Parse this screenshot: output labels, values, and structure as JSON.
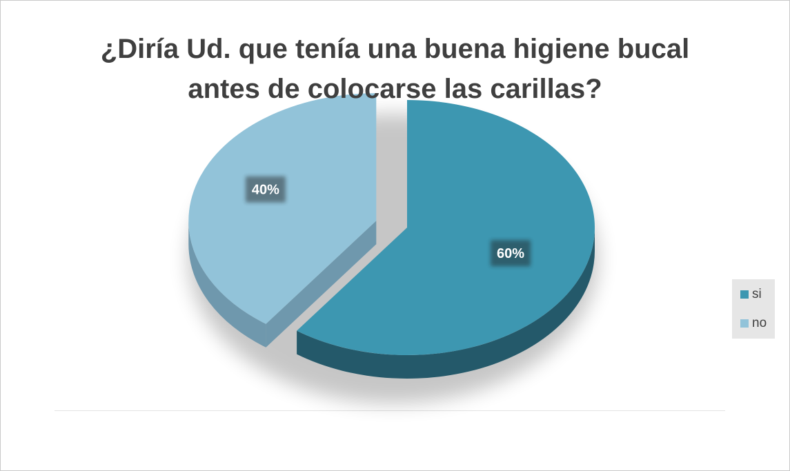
{
  "chart_data": {
    "type": "pie",
    "title_lines": [
      "¿Diría Ud. que tenía una buena higiene bucal",
      "antes de colocarse las carillas?"
    ],
    "categories": [
      "si",
      "no"
    ],
    "values": [
      60,
      40
    ],
    "labels": [
      "60%",
      "40%"
    ],
    "colors": [
      "#3d97b1",
      "#92c3d9"
    ],
    "side_colors": [
      "#24596a",
      "#6f98ad"
    ],
    "legend_position": "right",
    "exploded": "no"
  }
}
